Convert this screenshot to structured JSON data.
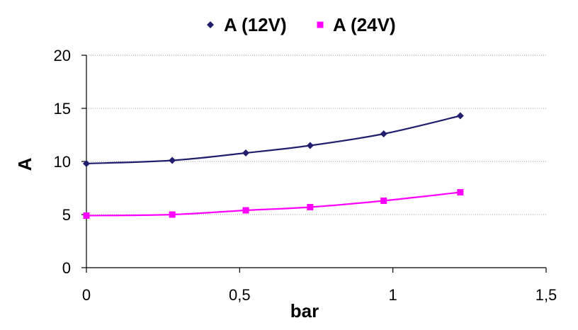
{
  "chart_data": {
    "type": "line",
    "title": "",
    "xlabel": "bar",
    "ylabel": "A",
    "xlim": [
      0,
      1.5
    ],
    "ylim": [
      0,
      20
    ],
    "x_ticks": [
      0,
      0.5,
      1,
      1.5
    ],
    "x_tick_labels": [
      "0",
      "0,5",
      "1",
      "1,5"
    ],
    "y_ticks": [
      0,
      5,
      10,
      15,
      20
    ],
    "y_tick_labels": [
      "0",
      "5",
      "10",
      "15",
      "20"
    ],
    "grid": true,
    "legend_position": "top",
    "series": [
      {
        "name": "A (12V)",
        "color": "#1f1f6e",
        "marker": "diamond",
        "x": [
          0,
          0.28,
          0.52,
          0.73,
          0.97,
          1.22
        ],
        "y": [
          9.8,
          10.1,
          10.8,
          11.5,
          12.6,
          14.3
        ]
      },
      {
        "name": "A (24V)",
        "color": "#ff00ff",
        "marker": "square",
        "x": [
          0,
          0.28,
          0.52,
          0.73,
          0.97,
          1.22
        ],
        "y": [
          4.9,
          5.0,
          5.4,
          5.7,
          6.3,
          7.1
        ]
      }
    ]
  }
}
